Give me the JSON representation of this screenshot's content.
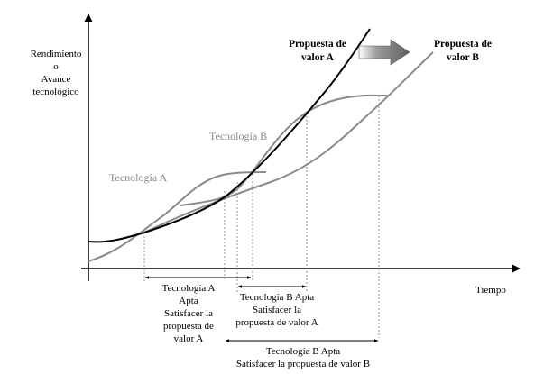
{
  "axes": {
    "y_label": [
      "Rendimiento",
      "o",
      "Avance",
      "tecnológico"
    ],
    "x_label": "Tiempo"
  },
  "curves": {
    "tech_a": "Tecnología A",
    "tech_b": "Tecnología B",
    "value_a": [
      "Propuesta de",
      "valor A"
    ],
    "value_b": [
      "Propuesta de",
      "valor B"
    ]
  },
  "intervals": {
    "tech_a_apt": [
      "Tecnología A",
      "Apta",
      "Satisfacer la",
      "propuesta de",
      "valor A"
    ],
    "tech_b_apt_a": [
      "Tecnología B Apta",
      "Satisfacer la",
      "propuesta de valor A"
    ],
    "tech_b_apt_b": [
      "Tecnología B  Apta",
      "Satisfacer la propuesta de valor B"
    ]
  },
  "colors": {
    "axis": "#000000",
    "value_a_curve": "#000000",
    "tech_curves": "#8a8a8a",
    "arrow": "#6b6b6b"
  }
}
